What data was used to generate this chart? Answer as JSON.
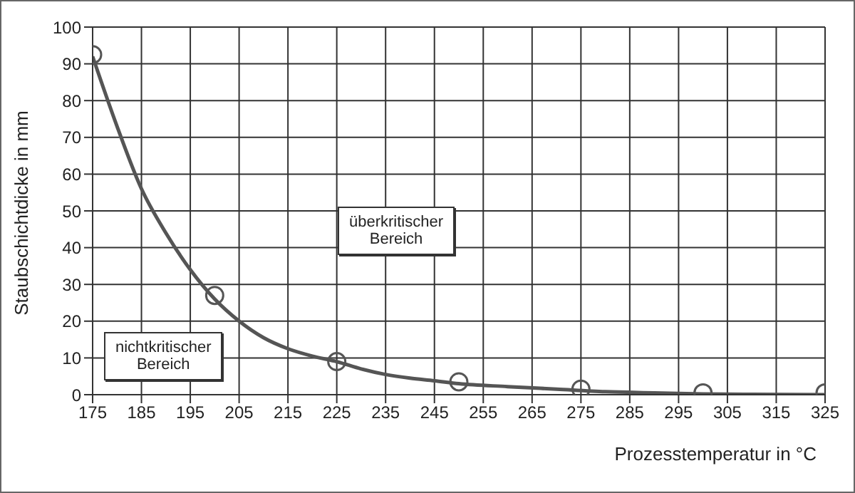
{
  "chart_data": {
    "type": "line",
    "xlabel": "Prozesstemperatur in °C",
    "ylabel": "Staubschichtdicke in mm",
    "xlim": [
      175,
      325
    ],
    "xticks": [
      175,
      185,
      195,
      205,
      215,
      225,
      235,
      245,
      255,
      265,
      275,
      285,
      295,
      305,
      315,
      325
    ],
    "ylim": [
      0,
      100
    ],
    "yticks": [
      0,
      10,
      20,
      30,
      40,
      50,
      60,
      70,
      80,
      90,
      100
    ],
    "grid": true,
    "legend": false,
    "series": [
      {
        "type": "line",
        "color": "#555555",
        "marker": "none",
        "x": [
          175,
          180,
          185,
          190,
          195,
          200,
          205,
          210,
          215,
          220,
          225,
          230,
          235,
          240,
          245,
          250,
          260,
          270,
          280,
          290,
          300,
          310,
          325
        ],
        "values": [
          92,
          73,
          56,
          44,
          34,
          26,
          20,
          15.5,
          12.5,
          10.5,
          9,
          7,
          5.5,
          4.5,
          3.8,
          3,
          2.2,
          1.5,
          0.8,
          0.5,
          0.2,
          0.1,
          0
        ]
      },
      {
        "type": "scatter",
        "color": "#555555",
        "marker": "circle",
        "x": [
          175,
          200,
          225,
          250,
          275,
          300,
          325
        ],
        "values": [
          92.5,
          27,
          9,
          3.5,
          1.5,
          0.5,
          0.5
        ]
      }
    ],
    "annotations": [
      "nichtkritischer\nBereich",
      "überkritischer\nBereich"
    ]
  }
}
